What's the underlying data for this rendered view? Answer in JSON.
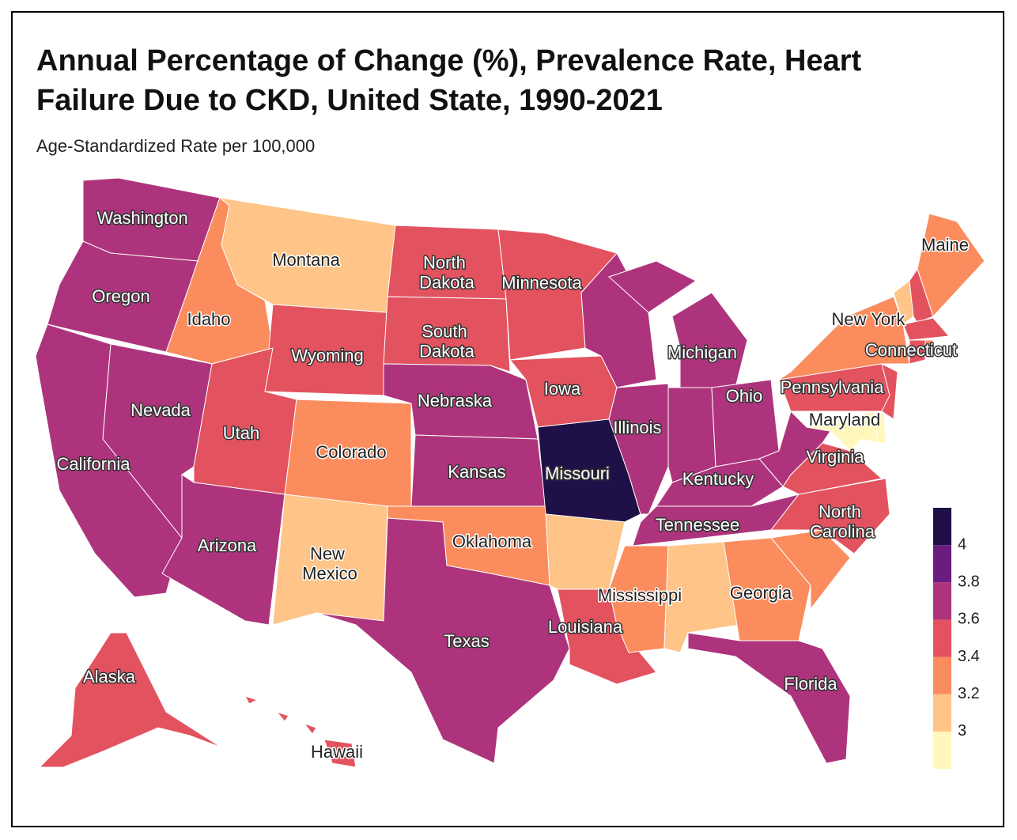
{
  "chart_data": {
    "type": "choropleth",
    "title": "Annual Percentage of Change (%), Prevalence Rate, Heart Failure Due to CKD, United State, 1990-2021",
    "subtitle": "Age-Standardized Rate per 100,000",
    "categories": [
      "Washington",
      "Oregon",
      "California",
      "Nevada",
      "Idaho",
      "Montana",
      "Wyoming",
      "Utah",
      "Colorado",
      "Arizona",
      "New Mexico",
      "North Dakota",
      "South Dakota",
      "Nebraska",
      "Kansas",
      "Oklahoma",
      "Texas",
      "Minnesota",
      "Iowa",
      "Missouri",
      null,
      "Louisiana",
      null,
      "Illinois",
      "Michigan",
      null,
      "Ohio",
      "Kentucky",
      "Tennessee",
      "Mississippi",
      null,
      "Georgia",
      "Florida",
      null,
      "North Carolina",
      "Virginia",
      null,
      "Pennsylvania",
      "New York",
      null,
      null,
      "Maine",
      null,
      "Connecticut",
      null,
      null,
      null,
      "Maryland",
      "Alaska",
      "Hawaii"
    ],
    "values": [
      3.65,
      3.65,
      3.8,
      3.65,
      3.25,
      3.05,
      3.45,
      3.45,
      3.25,
      3.65,
      3.05,
      3.45,
      3.45,
      3.65,
      3.65,
      3.25,
      3.8,
      3.45,
      3.45,
      4.05,
      3.05,
      3.45,
      3.65,
      3.65,
      3.8,
      3.8,
      3.8,
      3.65,
      3.65,
      3.25,
      3.05,
      3.25,
      3.65,
      3.25,
      3.45,
      3.45,
      3.65,
      3.45,
      3.25,
      3.05,
      3.45,
      3.25,
      3.45,
      3.45,
      3.35,
      3.45,
      2.95,
      2.9,
      3.45,
      3.45
    ],
    "colorbar": {
      "range": [
        2.8,
        4.2
      ],
      "ticks": [
        3,
        3.2,
        3.4,
        3.6,
        3.8,
        4
      ],
      "colors": [
        "#fff7bc",
        "#fec488",
        "#fb8c5e",
        "#e3525f",
        "#ad347c",
        "#6b1d7f",
        "#1f1147"
      ]
    }
  }
}
